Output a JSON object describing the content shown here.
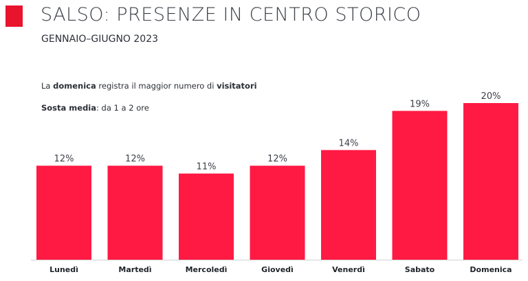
{
  "header": {
    "title": "SALSO: PRESENZE IN CENTRO STORICO",
    "subtitle": "GENNAIO–GIUGNO 2023"
  },
  "notes": {
    "line1_a": "La ",
    "line1_b": "domenica",
    "line1_c": " registra il maggior numero di ",
    "line1_d": "visitatori",
    "line2_a": "Sosta media",
    "line2_b": ": da 1 a 2 ore"
  },
  "colors": {
    "accent": "#e8132d",
    "bar": "#ff1a44",
    "baseline": "#d0d0d0"
  },
  "chart_data": {
    "type": "bar",
    "categories": [
      "Lunedì",
      "Martedì",
      "Mercoledì",
      "Giovedì",
      "Venerdì",
      "Sabato",
      "Domenica"
    ],
    "values": [
      12,
      12,
      11,
      12,
      14,
      19,
      20
    ],
    "value_labels": [
      "12%",
      "12%",
      "11%",
      "12%",
      "14%",
      "19%",
      "20%"
    ],
    "unit": "%",
    "ylim": [
      0,
      20
    ],
    "grid": false,
    "legend": "none"
  }
}
